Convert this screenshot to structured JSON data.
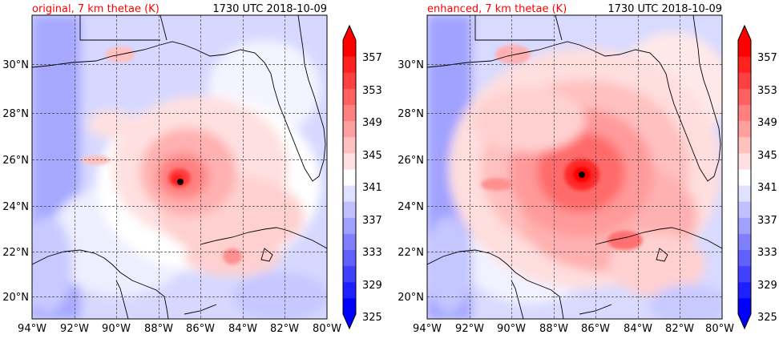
{
  "colors": {
    "title_left": "#ff0000",
    "title_right": "#000000",
    "levels": [
      "#0000ff",
      "#2020ff",
      "#4040ff",
      "#6060ff",
      "#8080ff",
      "#a0a0ff",
      "#c0c0ff",
      "#e0e0ff",
      "#ffffff",
      "#ffe0e0",
      "#ffc0c0",
      "#ffa0a0",
      "#ff8080",
      "#ff6060",
      "#ff4040",
      "#ff2020",
      "#ff0000"
    ]
  },
  "chart_data": [
    {
      "type": "heatmap",
      "title": "original, 7 km thetae (K)",
      "time_label": "1730 UTC 2018-10-09",
      "xticks": [
        "94°W",
        "92°W",
        "90°W",
        "88°W",
        "86°W",
        "84°W",
        "82°W",
        "80°W"
      ],
      "yticks": [
        "20°N",
        "22°N",
        "24°N",
        "26°N",
        "28°N",
        "30°N"
      ],
      "x_range": [
        -94,
        -80
      ],
      "y_range": [
        18.2,
        32.0
      ],
      "grid": true,
      "storm_center": {
        "lon": -86.9,
        "lat": 25.0
      },
      "colorbar": {
        "ticks": [
          "325",
          "329",
          "333",
          "337",
          "341",
          "345",
          "349",
          "353",
          "357"
        ],
        "range": [
          325,
          359
        ],
        "extend": "both"
      }
    },
    {
      "type": "heatmap",
      "title": "enhanced, 7 km thetae (K)",
      "time_label": "1730 UTC 2018-10-09",
      "xticks": [
        "94°W",
        "92°W",
        "90°W",
        "88°W",
        "86°W",
        "84°W",
        "82°W",
        "80°W"
      ],
      "yticks": [
        "20°N",
        "22°N",
        "24°N",
        "26°N",
        "28°N",
        "30°N"
      ],
      "x_range": [
        -94,
        -80
      ],
      "y_range": [
        18.2,
        32.0
      ],
      "grid": true,
      "storm_center": {
        "lon": -86.6,
        "lat": 25.3
      },
      "colorbar": {
        "ticks": [
          "325",
          "329",
          "333",
          "337",
          "341",
          "345",
          "349",
          "353",
          "357"
        ],
        "range": [
          325,
          359
        ],
        "extend": "both"
      }
    }
  ]
}
